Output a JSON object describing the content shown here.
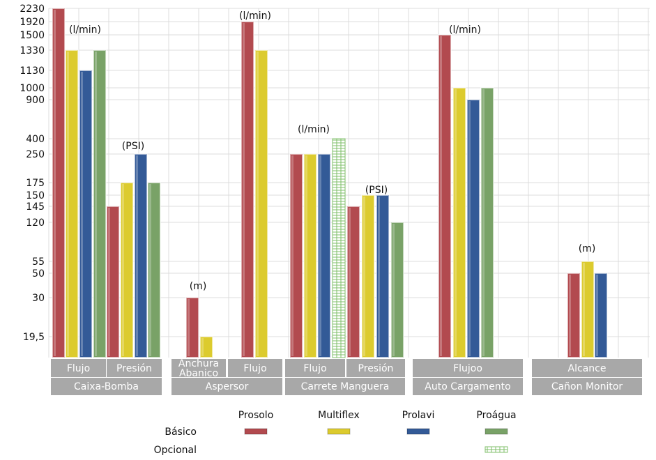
{
  "chart_data": {
    "type": "bar",
    "axis_scale": "categorical (irregular spacing)",
    "y_tick_labels": [
      "2230",
      "1920",
      "1500",
      "1330",
      "1130",
      "1000",
      "900",
      "400",
      "250",
      "175",
      "150",
      "145",
      "120",
      "55",
      "50",
      "30",
      "19,5"
    ],
    "groups": [
      {
        "name": "Caixa-Bomba",
        "subgroups": [
          {
            "label": "Flujo",
            "unit": "(l/min)",
            "bars": [
              {
                "series": "Prosolo",
                "value": 2230
              },
              {
                "series": "Multiflex",
                "value": 1330
              },
              {
                "series": "Prolavi",
                "value": 1130
              },
              {
                "series": "Proágua",
                "value": 1330
              }
            ]
          },
          {
            "label": "Presión",
            "unit": "(PSI)",
            "bars": [
              {
                "series": "Prosolo",
                "value": 145
              },
              {
                "series": "Multiflex",
                "value": 175
              },
              {
                "series": "Prolavi",
                "value": 250
              },
              {
                "series": "Proágua",
                "value": 175
              }
            ]
          }
        ]
      },
      {
        "name": "Aspersor",
        "subgroups": [
          {
            "label": "Anchura Abanico",
            "label_lines": [
              "Anchura",
              "Abanico"
            ],
            "unit": "(m)",
            "bars": [
              {
                "series": "Prosolo",
                "value": 30
              },
              {
                "series": "Multiflex",
                "value": 19.5
              }
            ]
          },
          {
            "label": "Flujo",
            "unit": "(l/min)",
            "bars": [
              {
                "series": "Prosolo",
                "value": 1920
              },
              {
                "series": "Multiflex",
                "value": 1330
              }
            ]
          }
        ]
      },
      {
        "name": "Carrete Manguera",
        "subgroups": [
          {
            "label": "Flujo",
            "unit": "(l/min)",
            "bars": [
              {
                "series": "Prosolo",
                "value": 250
              },
              {
                "series": "Multiflex",
                "value": 250
              },
              {
                "series": "Prolavi",
                "value": 250
              },
              {
                "series": "Opcional",
                "value": 400
              }
            ]
          },
          {
            "label": "Presión",
            "unit": "(PSI)",
            "bars": [
              {
                "series": "Prosolo",
                "value": 145
              },
              {
                "series": "Multiflex",
                "value": 150
              },
              {
                "series": "Prolavi",
                "value": 150
              },
              {
                "series": "Proágua",
                "value": 120
              }
            ]
          }
        ]
      },
      {
        "name": "Auto Cargamento",
        "subgroups": [
          {
            "label": "Flujoo",
            "unit": "(l/min)",
            "bars": [
              {
                "series": "Prosolo",
                "value": 1500
              },
              {
                "series": "Multiflex",
                "value": 1000
              },
              {
                "series": "Prolavi",
                "value": 900
              },
              {
                "series": "Proágua",
                "value": 1000
              }
            ]
          }
        ]
      },
      {
        "name": "Cañon Monitor",
        "subgroups": [
          {
            "label": "Alcance",
            "unit": "(m)",
            "bars": [
              {
                "series": "Prosolo",
                "value": 50
              },
              {
                "series": "Multiflex",
                "value": 55
              },
              {
                "series": "Prolavi",
                "value": 50
              }
            ]
          }
        ]
      }
    ],
    "legend": {
      "series": [
        "Prosolo",
        "Multiflex",
        "Prolavi",
        "Proágua"
      ],
      "row_labels": [
        "Básico",
        "Opcional"
      ],
      "placement": "bottom"
    },
    "colors": {
      "Prosolo": "#b24a4f",
      "Multiflex": "#dccb2e",
      "Prolavi": "#335a97",
      "Proágua": "#79a267",
      "Opcional": "#7fbf6a"
    },
    "grid": true
  }
}
